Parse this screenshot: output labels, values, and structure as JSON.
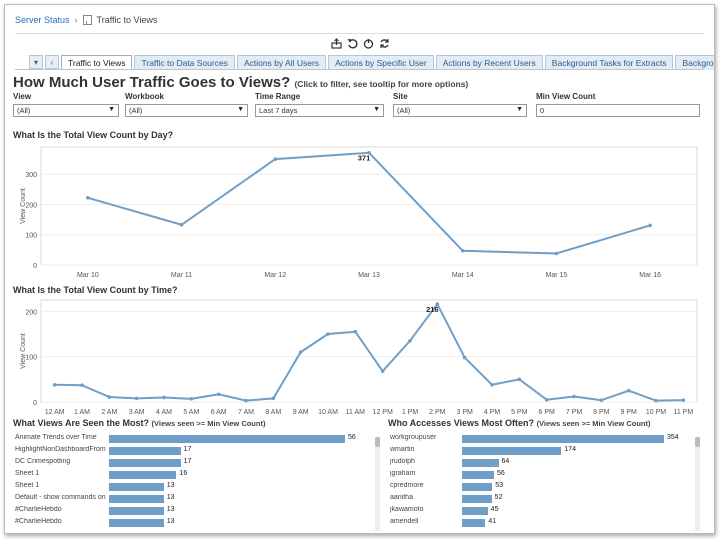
{
  "breadcrumb": {
    "root": "Server Status",
    "current": "Traffic to Views"
  },
  "toolbar": {
    "icons": [
      "export-icon",
      "undo-icon",
      "revert-icon",
      "refresh-icon"
    ]
  },
  "tabs": [
    {
      "label": "Traffic to Views",
      "active": true
    },
    {
      "label": "Traffic to Data Sources"
    },
    {
      "label": "Actions by All Users"
    },
    {
      "label": "Actions by Specific User"
    },
    {
      "label": "Actions by Recent Users"
    },
    {
      "label": "Background Tasks for Extracts"
    },
    {
      "label": "Background Tas"
    }
  ],
  "page": {
    "title": "How Much User Traffic Goes to Views?",
    "hint": "(Click to filter, see tooltip for more options)"
  },
  "filters": {
    "view": {
      "label": "View",
      "value": "(All)"
    },
    "workbook": {
      "label": "Workbook",
      "value": "(All)"
    },
    "time_range": {
      "label": "Time Range",
      "value": "Last 7 days"
    },
    "site": {
      "label": "Site",
      "value": "(All)"
    },
    "min_view_count": {
      "label": "Min View Count",
      "value": "0"
    }
  },
  "sections": {
    "by_day": "What Is the Total View Count by Day?",
    "by_time": "What Is the Total View Count by Time?",
    "most_seen": "What Views Are Seen the Most?",
    "most_seen_sub": "(Views seen >= Min View Count)",
    "who_accesses": "Who Accesses Views Most Often?",
    "who_accesses_sub": "(Views seen >= Min View Count)"
  },
  "colors": {
    "series": "#6f9fc8",
    "link": "#2a6ebb"
  },
  "chart_data": [
    {
      "type": "line",
      "ylabel": "View Count",
      "categories": [
        "Mar 10",
        "Mar 11",
        "Mar 12",
        "Mar 13",
        "Mar 14",
        "Mar 15",
        "Mar 16"
      ],
      "values": [
        222,
        133,
        350,
        371,
        47,
        38,
        131
      ],
      "yticks": [
        0,
        100,
        200,
        300
      ],
      "ylim": [
        0,
        390
      ],
      "labeled_point": {
        "index": 3,
        "text": "371"
      }
    },
    {
      "type": "line",
      "ylabel": "View Count",
      "categories": [
        "12 AM",
        "1 AM",
        "2 AM",
        "3 AM",
        "4 AM",
        "5 AM",
        "6 AM",
        "7 AM",
        "8 AM",
        "9 AM",
        "10 AM",
        "11 AM",
        "12 PM",
        "1 PM",
        "2 PM",
        "3 PM",
        "4 PM",
        "5 PM",
        "6 PM",
        "7 PM",
        "8 PM",
        "9 PM",
        "10 PM",
        "11 PM"
      ],
      "values": [
        38,
        37,
        11,
        8,
        10,
        7,
        17,
        3,
        8,
        110,
        150,
        155,
        68,
        135,
        216,
        98,
        38,
        50,
        5,
        12,
        4,
        25,
        3,
        4
      ],
      "yticks": [
        0,
        100,
        200
      ],
      "ylim": [
        0,
        225
      ],
      "labeled_point": {
        "index": 14,
        "text": "216"
      }
    },
    {
      "type": "bar",
      "orientation": "horizontal",
      "categories": [
        "Animate Trends over Time",
        "HighlightNonDashboardFrom",
        "DC Crimespotting",
        "Sheet 1",
        "Sheet 1",
        "Default - show commands on ..",
        "#CharlieHebdo",
        "#CharlieHebdo"
      ],
      "values": [
        56,
        17,
        17,
        16,
        13,
        13,
        13,
        13
      ],
      "xlim": [
        0,
        56
      ]
    },
    {
      "type": "bar",
      "orientation": "horizontal",
      "categories": [
        "workgroupuser",
        "wmartin",
        "jrudolph",
        "jgraham",
        "cpredmore",
        "aanitha",
        "jkawamoto",
        "amendell"
      ],
      "values": [
        354,
        174,
        64,
        56,
        53,
        52,
        45,
        41
      ],
      "xlim": [
        0,
        354
      ]
    }
  ]
}
